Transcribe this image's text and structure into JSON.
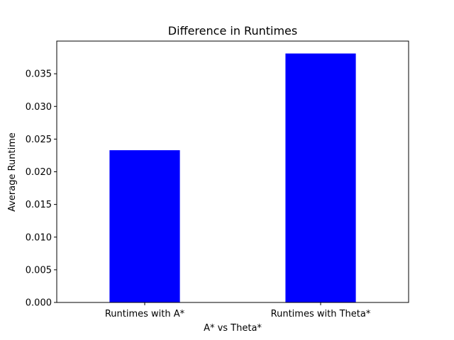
{
  "chart_data": {
    "type": "bar",
    "title": "Difference in Runtimes",
    "xlabel": "A* vs Theta*",
    "ylabel": "Average Runtime",
    "categories": [
      "Runtimes with A*",
      "Runtimes with Theta*"
    ],
    "values": [
      0.0233,
      0.0381
    ],
    "ylim": [
      0,
      0.04
    ],
    "yticks": [
      "0.000",
      "0.005",
      "0.010",
      "0.015",
      "0.020",
      "0.025",
      "0.030",
      "0.035"
    ],
    "bar_color": "#0000ff",
    "grid": false,
    "legend": "none"
  }
}
